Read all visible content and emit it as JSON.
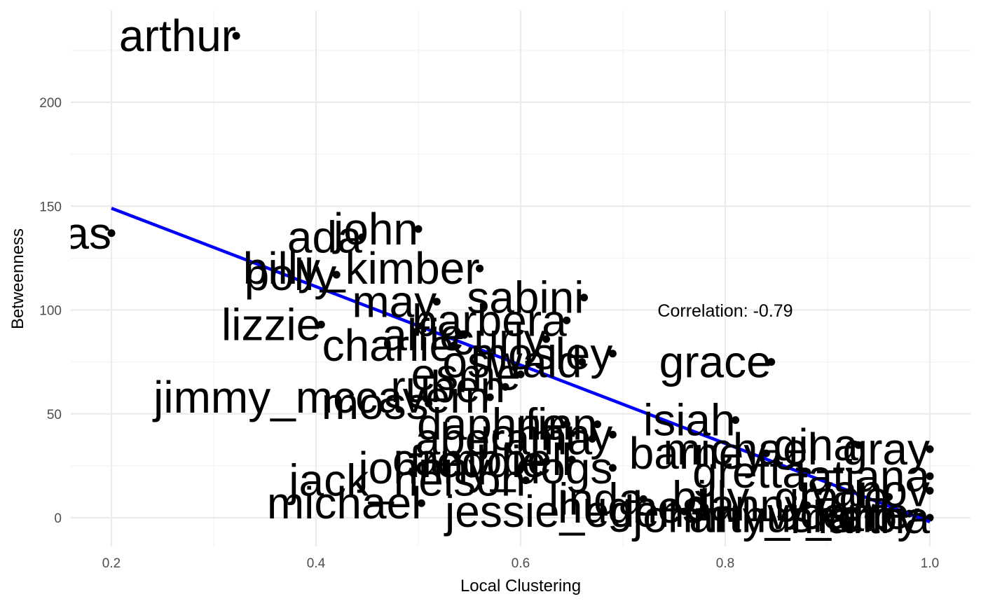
{
  "chart_data": {
    "type": "scatter",
    "xlabel": "Local Clustering",
    "ylabel": "Betweenness",
    "xlim": [
      0.15,
      1.02
    ],
    "ylim": [
      -15,
      235
    ],
    "x_ticks": [
      0.2,
      0.4,
      0.6,
      0.8,
      1.0
    ],
    "x_tick_labels": [
      "0.2",
      "0.4",
      "0.6",
      "0.8",
      "1.0"
    ],
    "y_ticks": [
      0,
      50,
      100,
      150,
      200
    ],
    "y_tick_labels": [
      "0",
      "50",
      "100",
      "150",
      "200"
    ],
    "grid": true,
    "annotation": "Correlation: -0.79",
    "trend_line": {
      "x": [
        0.2,
        1.0
      ],
      "y": [
        149,
        -2
      ],
      "color": "#0000ff"
    },
    "point_color": "#000000",
    "points": [
      {
        "x": 0.322,
        "y": 232,
        "label": "arthur"
      },
      {
        "x": 0.2,
        "y": 137,
        "label": "thomas"
      },
      {
        "x": 0.5,
        "y": 139,
        "label": "john"
      },
      {
        "x": 0.445,
        "y": 135,
        "label": "ada"
      },
      {
        "x": 0.56,
        "y": 120,
        "label": "billy_kimber"
      },
      {
        "x": 0.42,
        "y": 117,
        "label": "polly"
      },
      {
        "x": 0.662,
        "y": 106,
        "label": "sabini"
      },
      {
        "x": 0.518,
        "y": 104,
        "label": "may"
      },
      {
        "x": 0.645,
        "y": 95,
        "label": "barbera"
      },
      {
        "x": 0.405,
        "y": 93,
        "label": "lizzie"
      },
      {
        "x": 0.545,
        "y": 88,
        "label": "alfie"
      },
      {
        "x": 0.625,
        "y": 86,
        "label": "curly"
      },
      {
        "x": 0.535,
        "y": 83,
        "label": "charlie"
      },
      {
        "x": 0.69,
        "y": 79,
        "label": "mosley"
      },
      {
        "x": 0.845,
        "y": 75,
        "label": "grace"
      },
      {
        "x": 0.66,
        "y": 75,
        "label": "oswald"
      },
      {
        "x": 0.6,
        "y": 69,
        "label": "esme"
      },
      {
        "x": 0.585,
        "y": 63,
        "label": "ruben"
      },
      {
        "x": 0.57,
        "y": 58,
        "label": "jimmy_mccavern"
      },
      {
        "x": 0.51,
        "y": 55,
        "label": "moss"
      },
      {
        "x": 0.81,
        "y": 47,
        "label": "isiah"
      },
      {
        "x": 0.645,
        "y": 45,
        "label": "daphne"
      },
      {
        "x": 0.675,
        "y": 45,
        "label": "finn"
      },
      {
        "x": 0.69,
        "y": 40,
        "label": "johnny"
      },
      {
        "x": 0.67,
        "y": 38,
        "label": "aberama"
      },
      {
        "x": 0.93,
        "y": 35,
        "label": "gina"
      },
      {
        "x": 1.0,
        "y": 33,
        "label": "michael_gray"
      },
      {
        "x": 0.84,
        "y": 31,
        "label": "barney"
      },
      {
        "x": 0.65,
        "y": 28,
        "label": "campbell"
      },
      {
        "x": 0.625,
        "y": 27,
        "label": "freddie"
      },
      {
        "x": 0.69,
        "y": 24,
        "label": "johnny_dogs"
      },
      {
        "x": 0.88,
        "y": 22,
        "label": "gretta"
      },
      {
        "x": 1.0,
        "y": 20,
        "label": "tatiana"
      },
      {
        "x": 0.605,
        "y": 18,
        "label": "jack_nelson"
      },
      {
        "x": 1.0,
        "y": 13,
        "label": "ivanov"
      },
      {
        "x": 0.96,
        "y": 10,
        "label": "billy_grade"
      },
      {
        "x": 0.72,
        "y": 9,
        "label": "linda"
      },
      {
        "x": 0.503,
        "y": 7,
        "label": "michael"
      },
      {
        "x": 0.88,
        "y": 6,
        "label": "danny"
      },
      {
        "x": 0.78,
        "y": 5,
        "label": "hughes"
      },
      {
        "x": 0.76,
        "y": 3,
        "label": "jessie_eden"
      },
      {
        "x": 0.98,
        "y": 2,
        "label": "vicente"
      },
      {
        "x": 0.96,
        "y": 1,
        "label": "karl"
      },
      {
        "x": 0.94,
        "y": 0.5,
        "label": "arthur_sr"
      },
      {
        "x": 1.0,
        "y": 0,
        "label": "martha"
      },
      {
        "x": 0.99,
        "y": 0.5,
        "label": "johnny_shelby"
      }
    ]
  }
}
